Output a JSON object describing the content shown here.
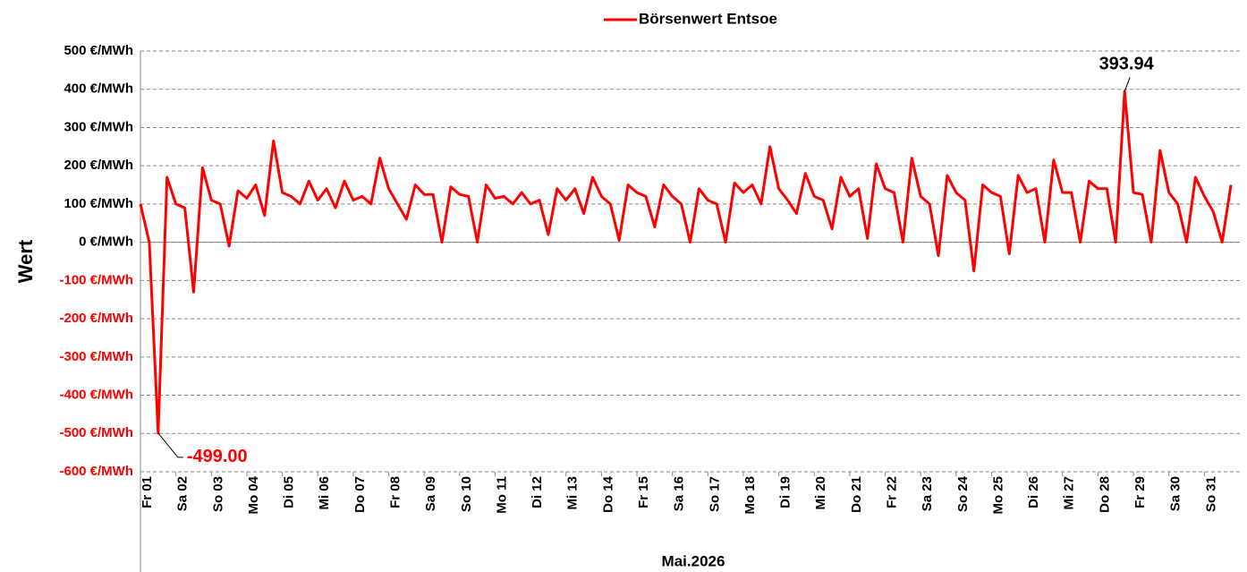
{
  "chart_data": {
    "type": "line",
    "ylabel": "Wert",
    "xlabel": "Mai.2026",
    "xlim": [
      0,
      744
    ],
    "ylim": [
      -600,
      500
    ],
    "xticks": [
      {
        "value": 0,
        "label": "Fr 01"
      },
      {
        "value": 24,
        "label": "Sa 02"
      },
      {
        "value": 48,
        "label": "So 03"
      },
      {
        "value": 72,
        "label": "Mo 04"
      },
      {
        "value": 96,
        "label": "Di 05"
      },
      {
        "value": 120,
        "label": "Mi 06"
      },
      {
        "value": 144,
        "label": "Do 07"
      },
      {
        "value": 168,
        "label": "Fr 08"
      },
      {
        "value": 192,
        "label": "Sa 09"
      },
      {
        "value": 216,
        "label": "So 10"
      },
      {
        "value": 240,
        "label": "Mo 11"
      },
      {
        "value": 264,
        "label": "Di 12"
      },
      {
        "value": 288,
        "label": "Mi 13"
      },
      {
        "value": 312,
        "label": "Do 14"
      },
      {
        "value": 336,
        "label": "Fr 15"
      },
      {
        "value": 360,
        "label": "Sa 16"
      },
      {
        "value": 384,
        "label": "So 17"
      },
      {
        "value": 408,
        "label": "Mo 18"
      },
      {
        "value": 432,
        "label": "Di 19"
      },
      {
        "value": 456,
        "label": "Mi 20"
      },
      {
        "value": 480,
        "label": "Do 21"
      },
      {
        "value": 504,
        "label": "Fr 22"
      },
      {
        "value": 528,
        "label": "Sa 23"
      },
      {
        "value": 552,
        "label": "So 24"
      },
      {
        "value": 576,
        "label": "Mo 25"
      },
      {
        "value": 600,
        "label": "Di 26"
      },
      {
        "value": 624,
        "label": "Mi 27"
      },
      {
        "value": 648,
        "label": "Do 28"
      },
      {
        "value": 672,
        "label": "Fr 29"
      },
      {
        "value": 696,
        "label": "Sa 30"
      },
      {
        "value": 720,
        "label": "So 31"
      }
    ],
    "yticks": [
      {
        "value": 500,
        "label": "500 €/MWh"
      },
      {
        "value": 400,
        "label": "400 €/MWh"
      },
      {
        "value": 300,
        "label": "300 €/MWh"
      },
      {
        "value": 200,
        "label": "200 €/MWh"
      },
      {
        "value": 100,
        "label": "100 €/MWh"
      },
      {
        "value": 0,
        "label": "0 €/MWh"
      },
      {
        "value": -100,
        "label": "-100 €/MWh"
      },
      {
        "value": -200,
        "label": "-200 €/MWh"
      },
      {
        "value": -300,
        "label": "-300 €/MWh"
      },
      {
        "value": -400,
        "label": "-400 €/MWh"
      },
      {
        "value": -500,
        "label": "-500 €/MWh"
      },
      {
        "value": -600,
        "label": "-600 €/MWh"
      }
    ],
    "grid": true,
    "negative_label_color": "#ff0000",
    "legend": "top",
    "x": [
      0,
      6,
      12,
      18,
      24,
      30,
      36,
      42,
      48,
      54,
      60,
      66,
      72,
      78,
      84,
      90,
      96,
      102,
      108,
      114,
      120,
      126,
      132,
      138,
      144,
      150,
      156,
      162,
      168,
      174,
      180,
      186,
      192,
      198,
      204,
      210,
      216,
      222,
      228,
      234,
      240,
      246,
      252,
      258,
      264,
      270,
      276,
      282,
      288,
      294,
      300,
      306,
      312,
      318,
      324,
      330,
      336,
      342,
      348,
      354,
      360,
      366,
      372,
      378,
      384,
      390,
      396,
      402,
      408,
      414,
      420,
      426,
      432,
      438,
      444,
      450,
      456,
      462,
      468,
      474,
      480,
      486,
      492,
      498,
      504,
      510,
      516,
      522,
      528,
      534,
      540,
      546,
      552,
      558,
      564,
      570,
      576,
      582,
      588,
      594,
      600,
      606,
      612,
      618,
      624,
      630,
      636,
      642,
      648,
      654,
      660,
      666,
      672,
      678,
      684,
      690,
      696,
      702,
      708,
      714,
      720,
      726,
      732,
      738
    ],
    "series": [
      {
        "name": "Börsenwert Entsoe",
        "color": "#ff0000",
        "values": [
          100,
          0,
          -499,
          170,
          100,
          90,
          -130,
          195,
          110,
          100,
          -10,
          135,
          115,
          150,
          70,
          265,
          130,
          120,
          100,
          160,
          110,
          140,
          90,
          160,
          110,
          120,
          100,
          220,
          140,
          100,
          60,
          150,
          125,
          125,
          0,
          145,
          125,
          120,
          0,
          150,
          115,
          120,
          100,
          130,
          100,
          110,
          20,
          140,
          110,
          140,
          75,
          170,
          120,
          100,
          5,
          150,
          130,
          120,
          40,
          150,
          120,
          100,
          0,
          140,
          110,
          100,
          0,
          155,
          130,
          150,
          100,
          250,
          140,
          110,
          75,
          180,
          120,
          110,
          35,
          170,
          120,
          140,
          10,
          205,
          140,
          130,
          0,
          220,
          120,
          100,
          -35,
          175,
          130,
          110,
          -75,
          150,
          130,
          120,
          -30,
          175,
          130,
          140,
          0,
          215,
          130,
          130,
          0,
          160,
          140,
          140,
          0,
          393.94,
          130,
          125,
          0,
          240,
          130,
          100,
          0,
          170,
          120,
          80,
          0,
          150
        ],
        "value_labels": [
          null,
          null,
          "-499.00",
          null,
          null,
          null,
          null,
          null,
          null,
          null,
          null,
          null,
          null,
          null,
          null,
          null,
          null,
          null,
          null,
          null,
          null,
          null,
          null,
          null,
          null,
          null,
          null,
          null,
          null,
          null,
          null,
          null,
          null,
          null,
          null,
          null,
          null,
          null,
          null,
          null,
          null,
          null,
          null,
          null,
          null,
          null,
          null,
          null,
          null,
          null,
          null,
          null,
          null,
          null,
          null,
          null,
          null,
          null,
          null,
          null,
          null,
          null,
          null,
          null,
          null,
          null,
          null,
          null,
          null,
          null,
          null,
          null,
          null,
          null,
          null,
          null,
          null,
          null,
          null,
          null,
          null,
          null,
          null,
          null,
          null,
          null,
          null,
          null,
          null,
          null,
          null,
          null,
          null,
          null,
          null,
          null,
          null,
          null,
          null,
          null,
          null,
          null,
          null,
          null,
          null,
          null,
          null,
          null,
          null,
          null,
          null,
          "393.94",
          null,
          null,
          null,
          null,
          null,
          null,
          null,
          null,
          null,
          null,
          null,
          null
        ]
      }
    ]
  }
}
